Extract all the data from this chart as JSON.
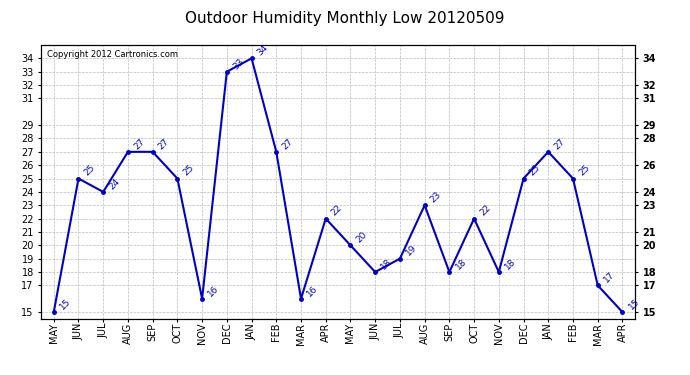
{
  "title": "Outdoor Humidity Monthly Low 20120509",
  "copyright": "Copyright 2012 Cartronics.com",
  "x_labels": [
    "MAY",
    "JUN",
    "JUL",
    "AUG",
    "SEP",
    "OCT",
    "NOV",
    "DEC",
    "JAN",
    "FEB",
    "MAR",
    "APR",
    "MAY",
    "JUN",
    "JUL",
    "AUG",
    "SEP",
    "OCT",
    "NOV",
    "DEC",
    "JAN",
    "FEB",
    "MAR",
    "APR"
  ],
  "y_values": [
    15,
    25,
    24,
    27,
    27,
    25,
    16,
    33,
    34,
    27,
    16,
    22,
    20,
    18,
    19,
    23,
    18,
    22,
    18,
    25,
    27,
    25,
    17,
    15
  ],
  "line_color": "#0000cc",
  "marker": "o",
  "marker_size": 2.5,
  "line_width": 1.5,
  "ylim": [
    14.5,
    35
  ],
  "yticks_left": [
    15,
    17,
    18,
    19,
    20,
    21,
    22,
    23,
    24,
    25,
    26,
    27,
    28,
    29,
    31,
    32,
    33,
    34
  ],
  "yticks_right": [
    15,
    17,
    18,
    20,
    21,
    23,
    24,
    26,
    28,
    29,
    31,
    32,
    34
  ],
  "grid_color": "#bbbbbb",
  "grid_style": "--",
  "background_color": "#ffffff",
  "title_fontsize": 11,
  "label_fontsize": 7,
  "annotation_fontsize": 6.5,
  "copyright_fontsize": 6
}
